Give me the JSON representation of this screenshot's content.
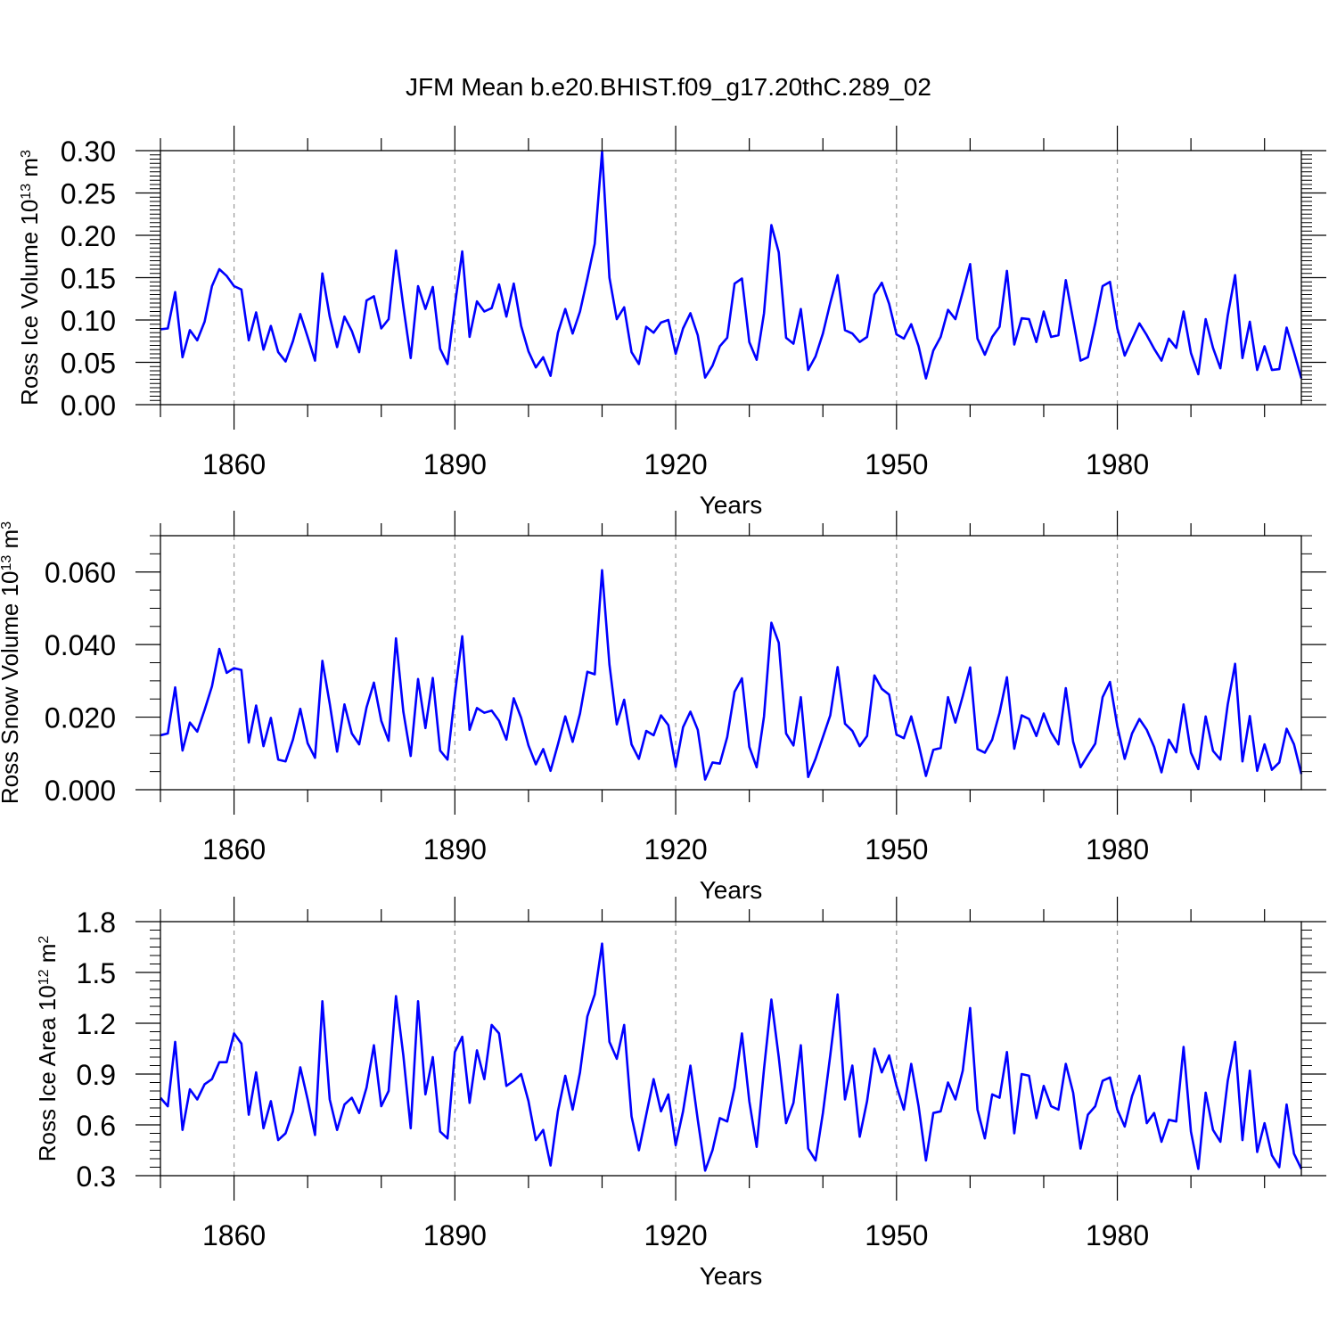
{
  "figure": {
    "title": "JFM Mean b.e20.BHIST.f09_g17.20thC.289_02",
    "line_color": "#0000ff",
    "grid_color": "#999999"
  },
  "chart_data": [
    {
      "type": "line",
      "title": "JFM Mean b.e20.BHIST.f09_g17.20thC.289_02",
      "xlabel": "Years",
      "ylabel": {
        "base": "Ross Ice Volume 10",
        "exponent": "13",
        "unit": " m",
        "unit_exponent": "3"
      },
      "xlim": [
        1850,
        2005
      ],
      "ylim": [
        0,
        0.3
      ],
      "x_ticks": [
        1860,
        1890,
        1920,
        1950,
        1980
      ],
      "x_tick_labels": [
        "1860",
        "1890",
        "1920",
        "1950",
        "1980"
      ],
      "y_ticks": [
        0,
        0.05,
        0.1,
        0.15,
        0.2,
        0.25,
        0.3
      ],
      "y_tick_labels": [
        "0.00",
        "0.05",
        "0.10",
        "0.15",
        "0.20",
        "0.25",
        "0.30"
      ],
      "grid": "vertical dashed at major x ticks",
      "series": [
        {
          "name": "Ross Ice Volume",
          "x_start": 1850,
          "x_step": 1,
          "values": [
            0.089,
            0.09,
            0.133,
            0.056,
            0.088,
            0.076,
            0.098,
            0.14,
            0.16,
            0.152,
            0.14,
            0.136,
            0.076,
            0.109,
            0.065,
            0.093,
            0.062,
            0.051,
            0.075,
            0.107,
            0.08,
            0.052,
            0.155,
            0.104,
            0.068,
            0.104,
            0.087,
            0.062,
            0.123,
            0.128,
            0.09,
            0.101,
            0.182,
            0.116,
            0.055,
            0.14,
            0.113,
            0.139,
            0.066,
            0.048,
            0.117,
            0.181,
            0.08,
            0.122,
            0.11,
            0.114,
            0.142,
            0.104,
            0.143,
            0.093,
            0.063,
            0.044,
            0.056,
            0.034,
            0.085,
            0.113,
            0.084,
            0.11,
            0.149,
            0.19,
            0.299,
            0.15,
            0.101,
            0.115,
            0.062,
            0.048,
            0.092,
            0.085,
            0.097,
            0.1,
            0.06,
            0.09,
            0.108,
            0.082,
            0.032,
            0.046,
            0.069,
            0.079,
            0.143,
            0.149,
            0.074,
            0.053,
            0.108,
            0.212,
            0.18,
            0.079,
            0.072,
            0.113,
            0.041,
            0.057,
            0.084,
            0.12,
            0.153,
            0.088,
            0.084,
            0.074,
            0.08,
            0.13,
            0.144,
            0.119,
            0.083,
            0.078,
            0.095,
            0.069,
            0.031,
            0.064,
            0.08,
            0.112,
            0.101,
            0.133,
            0.166,
            0.078,
            0.059,
            0.08,
            0.092,
            0.158,
            0.071,
            0.102,
            0.101,
            0.074,
            0.11,
            0.08,
            0.082,
            0.147,
            0.1,
            0.052,
            0.056,
            0.096,
            0.14,
            0.145,
            0.09,
            0.058,
            0.077,
            0.096,
            0.082,
            0.066,
            0.052,
            0.078,
            0.067,
            0.11,
            0.061,
            0.036,
            0.101,
            0.067,
            0.043,
            0.105,
            0.153,
            0.055,
            0.098,
            0.041,
            0.069,
            0.041,
            0.042,
            0.091,
            0.062,
            0.031
          ]
        }
      ]
    },
    {
      "type": "line",
      "xlabel": "Years",
      "ylabel": {
        "base": "Ross Snow Volume 10",
        "exponent": "13",
        "unit": " m",
        "unit_exponent": "3"
      },
      "xlim": [
        1850,
        2005
      ],
      "ylim": [
        0,
        0.07
      ],
      "x_ticks": [
        1860,
        1890,
        1920,
        1950,
        1980
      ],
      "x_tick_labels": [
        "1860",
        "1890",
        "1920",
        "1950",
        "1980"
      ],
      "y_ticks": [
        0,
        0.02,
        0.04,
        0.06
      ],
      "y_tick_labels": [
        "0.000",
        "0.020",
        "0.040",
        "0.060"
      ],
      "grid": "vertical dashed at major x ticks",
      "series": [
        {
          "name": "Ross Snow Volume",
          "x_start": 1850,
          "x_step": 1,
          "values": [
            0.015,
            0.0155,
            0.0282,
            0.0108,
            0.0185,
            0.016,
            0.022,
            0.0285,
            0.0388,
            0.0322,
            0.0335,
            0.033,
            0.013,
            0.0232,
            0.012,
            0.0198,
            0.0083,
            0.0078,
            0.0138,
            0.0223,
            0.0128,
            0.0088,
            0.0355,
            0.0237,
            0.0105,
            0.0235,
            0.0155,
            0.0125,
            0.0227,
            0.0295,
            0.019,
            0.0135,
            0.0417,
            0.0215,
            0.0093,
            0.0305,
            0.017,
            0.0308,
            0.0108,
            0.0083,
            0.0262,
            0.0423,
            0.0165,
            0.0225,
            0.0212,
            0.0218,
            0.019,
            0.0138,
            0.0252,
            0.0198,
            0.0122,
            0.007,
            0.0112,
            0.0052,
            0.0125,
            0.0202,
            0.0132,
            0.021,
            0.0325,
            0.0318,
            0.0605,
            0.0345,
            0.018,
            0.0248,
            0.0125,
            0.0085,
            0.0162,
            0.015,
            0.0205,
            0.0178,
            0.0063,
            0.0172,
            0.0215,
            0.0165,
            0.0028,
            0.0075,
            0.0072,
            0.0145,
            0.027,
            0.0307,
            0.0118,
            0.0062,
            0.0202,
            0.046,
            0.0405,
            0.0155,
            0.0122,
            0.0255,
            0.0035,
            0.0085,
            0.0145,
            0.0205,
            0.0338,
            0.0182,
            0.0162,
            0.012,
            0.0148,
            0.0315,
            0.0278,
            0.0262,
            0.0152,
            0.0142,
            0.0202,
            0.0125,
            0.0038,
            0.011,
            0.0115,
            0.0255,
            0.0185,
            0.0258,
            0.0337,
            0.0112,
            0.0102,
            0.0138,
            0.0212,
            0.031,
            0.0113,
            0.0205,
            0.0195,
            0.0148,
            0.021,
            0.0158,
            0.0125,
            0.028,
            0.0132,
            0.0062,
            0.0095,
            0.0127,
            0.0255,
            0.0297,
            0.0175,
            0.0085,
            0.0155,
            0.0195,
            0.0165,
            0.0118,
            0.0048,
            0.0138,
            0.0103,
            0.0235,
            0.0102,
            0.0057,
            0.0202,
            0.0107,
            0.0083,
            0.0235,
            0.0347,
            0.0078,
            0.0203,
            0.0052,
            0.0125,
            0.0055,
            0.0075,
            0.0168,
            0.0125,
            0.0043
          ]
        }
      ]
    },
    {
      "type": "line",
      "xlabel": "Years",
      "ylabel": {
        "base": "Ross Ice Area 10",
        "exponent": "12",
        "unit": " m",
        "unit_exponent": "2"
      },
      "xlim": [
        1850,
        2005
      ],
      "ylim": [
        0.3,
        1.8
      ],
      "x_ticks": [
        1860,
        1890,
        1920,
        1950,
        1980
      ],
      "x_tick_labels": [
        "1860",
        "1890",
        "1920",
        "1950",
        "1980"
      ],
      "y_ticks": [
        0.3,
        0.6,
        0.9,
        1.2,
        1.5,
        1.8
      ],
      "y_tick_labels": [
        "0.3",
        "0.6",
        "0.9",
        "1.2",
        "1.5",
        "1.8"
      ],
      "grid": "vertical dashed at major x ticks",
      "series": [
        {
          "name": "Ross Ice Area",
          "x_start": 1850,
          "x_step": 1,
          "values": [
            0.76,
            0.71,
            1.09,
            0.57,
            0.81,
            0.75,
            0.84,
            0.87,
            0.97,
            0.97,
            1.14,
            1.08,
            0.66,
            0.91,
            0.58,
            0.74,
            0.51,
            0.55,
            0.68,
            0.94,
            0.75,
            0.54,
            1.33,
            0.75,
            0.57,
            0.72,
            0.76,
            0.67,
            0.82,
            1.07,
            0.71,
            0.8,
            1.36,
            1.01,
            0.58,
            1.33,
            0.78,
            1.0,
            0.56,
            0.52,
            1.03,
            1.12,
            0.73,
            1.04,
            0.87,
            1.19,
            1.14,
            0.83,
            0.86,
            0.9,
            0.74,
            0.51,
            0.57,
            0.36,
            0.68,
            0.89,
            0.69,
            0.91,
            1.24,
            1.37,
            1.67,
            1.09,
            0.99,
            1.19,
            0.65,
            0.45,
            0.66,
            0.87,
            0.68,
            0.78,
            0.48,
            0.68,
            0.95,
            0.63,
            0.33,
            0.45,
            0.64,
            0.62,
            0.82,
            1.14,
            0.74,
            0.47,
            0.93,
            1.34,
            1.0,
            0.61,
            0.73,
            1.07,
            0.46,
            0.39,
            0.67,
            1.01,
            1.37,
            0.75,
            0.95,
            0.53,
            0.74,
            1.05,
            0.91,
            1.01,
            0.83,
            0.69,
            0.96,
            0.71,
            0.39,
            0.67,
            0.68,
            0.85,
            0.75,
            0.92,
            1.29,
            0.69,
            0.52,
            0.78,
            0.76,
            1.03,
            0.55,
            0.9,
            0.89,
            0.64,
            0.83,
            0.71,
            0.69,
            0.96,
            0.79,
            0.46,
            0.66,
            0.71,
            0.86,
            0.88,
            0.69,
            0.59,
            0.77,
            0.89,
            0.61,
            0.67,
            0.5,
            0.63,
            0.62,
            1.06,
            0.56,
            0.34,
            0.79,
            0.57,
            0.5,
            0.86,
            1.09,
            0.51,
            0.92,
            0.44,
            0.61,
            0.42,
            0.35,
            0.72,
            0.43,
            0.34
          ]
        }
      ]
    }
  ]
}
